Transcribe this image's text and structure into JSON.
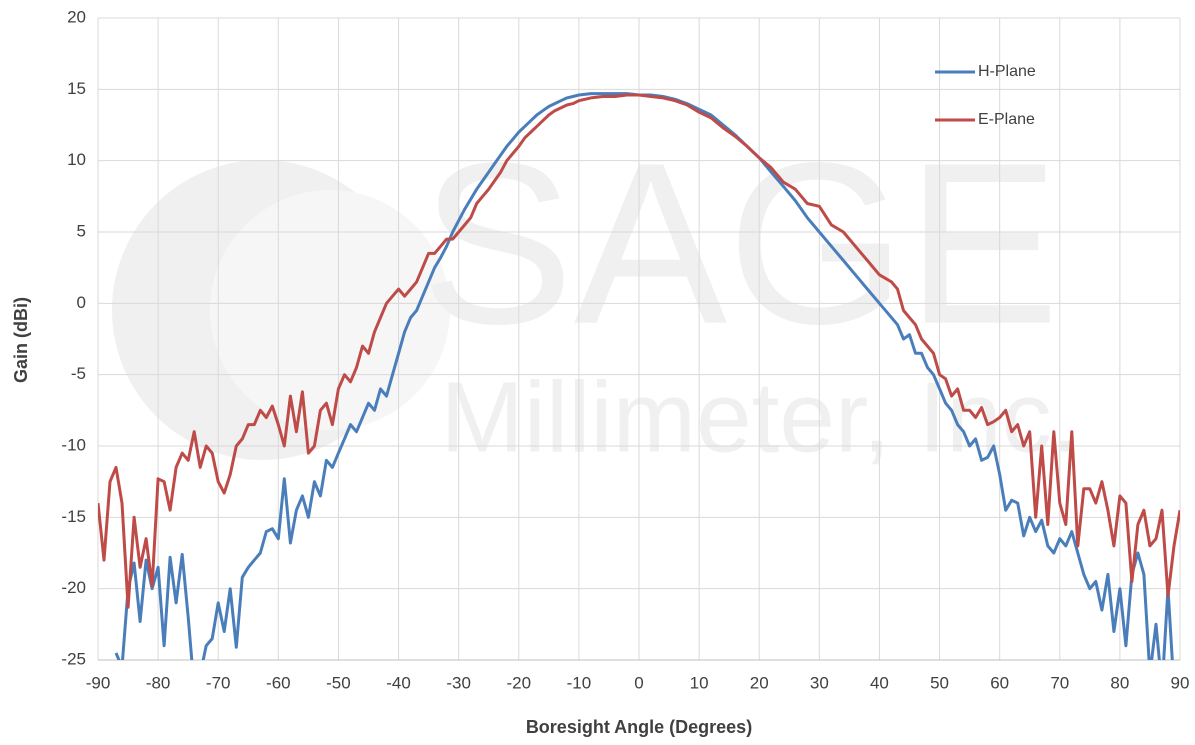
{
  "chart_data": {
    "type": "line",
    "xlabel": "Boresight Angle (Degrees)",
    "ylabel": "Gain (dBi)",
    "watermark": [
      "SAGE",
      "Millimeter, Inc."
    ],
    "xlim": [
      -90,
      90
    ],
    "xticks": [
      -90,
      -80,
      -70,
      -60,
      -50,
      -40,
      -30,
      -20,
      -10,
      0,
      10,
      20,
      30,
      40,
      50,
      60,
      70,
      80,
      90
    ],
    "ylim": [
      -25,
      20
    ],
    "yticks": [
      -25,
      -20,
      -15,
      -10,
      -5,
      0,
      5,
      10,
      15,
      20
    ],
    "grid": true,
    "legend": "upper right",
    "series": [
      {
        "name": "H-Plane",
        "color": "#4a7ebb",
        "x": [
          -87,
          -86,
          -85,
          -84,
          -83,
          -82,
          -81,
          -80,
          -79,
          -78,
          -77,
          -76,
          -75,
          -74,
          -73,
          -72,
          -71,
          -70,
          -69,
          -68,
          -67,
          -66,
          -65,
          -64,
          -63,
          -62,
          -61,
          -60,
          -59,
          -58,
          -57,
          -56,
          -55,
          -54,
          -53,
          -52,
          -51,
          -50,
          -49,
          -48,
          -47,
          -46,
          -45,
          -44,
          -43,
          -42,
          -41,
          -40,
          -39,
          -38,
          -37,
          -36,
          -35,
          -34,
          -33,
          -32,
          -31,
          -30,
          -29,
          -28,
          -27,
          -26,
          -25,
          -24,
          -23,
          -22,
          -21,
          -20,
          -19,
          -18,
          -17,
          -16,
          -15,
          -14,
          -13,
          -12,
          -11,
          -10,
          -8,
          -6,
          -4,
          -2,
          0,
          2,
          4,
          6,
          8,
          10,
          12,
          14,
          16,
          18,
          20,
          22,
          24,
          26,
          28,
          30,
          32,
          34,
          36,
          38,
          40,
          42,
          43,
          44,
          45,
          46,
          47,
          48,
          49,
          50,
          51,
          52,
          53,
          54,
          55,
          56,
          57,
          58,
          59,
          60,
          61,
          62,
          63,
          64,
          65,
          66,
          67,
          68,
          69,
          70,
          71,
          72,
          73,
          74,
          75,
          76,
          77,
          78,
          79,
          80,
          81,
          82,
          83,
          84,
          85,
          86,
          87,
          88,
          89
        ],
        "values": [
          -24.5,
          -25.5,
          -20,
          -18.2,
          -22.3,
          -18,
          -20,
          -18.5,
          -24,
          -17.8,
          -21,
          -17.6,
          -22,
          -27,
          -26,
          -24,
          -23.5,
          -21,
          -23,
          -20,
          -24.1,
          -19.2,
          -18.5,
          -18,
          -17.5,
          -16,
          -15.8,
          -16.5,
          -12.3,
          -16.8,
          -14.5,
          -13.5,
          -15,
          -12.5,
          -13.5,
          -11,
          -11.5,
          -10.5,
          -9.5,
          -8.5,
          -9,
          -8,
          -7,
          -7.5,
          -6,
          -6.5,
          -5,
          -3.5,
          -2,
          -1,
          -0.5,
          0.5,
          1.5,
          2.5,
          3.2,
          4,
          5,
          5.8,
          6.6,
          7.3,
          8,
          8.6,
          9.2,
          9.8,
          10.4,
          11,
          11.5,
          12,
          12.4,
          12.8,
          13.2,
          13.5,
          13.8,
          14,
          14.2,
          14.4,
          14.5,
          14.6,
          14.7,
          14.7,
          14.7,
          14.7,
          14.6,
          14.6,
          14.5,
          14.3,
          14,
          13.6,
          13.2,
          12.5,
          11.8,
          11,
          10.2,
          9.2,
          8.2,
          7.2,
          6,
          5,
          4,
          3,
          2,
          1,
          0,
          -1,
          -1.5,
          -2.5,
          -2.2,
          -3.5,
          -3.5,
          -4.5,
          -5,
          -6,
          -7,
          -7.5,
          -8.5,
          -9,
          -10,
          -9.5,
          -11,
          -10.8,
          -10,
          -12,
          -14.5,
          -13.8,
          -14,
          -16.3,
          -15,
          -16,
          -15.2,
          -17,
          -17.5,
          -16.5,
          -17,
          -16,
          -17.5,
          -19,
          -20,
          -19.5,
          -21.5,
          -19,
          -23,
          -20,
          -24,
          -19,
          -17.5,
          -19,
          -26,
          -22.5,
          -27,
          -20,
          -27
        ]
      },
      {
        "name": "E-Plane",
        "color": "#be4b48",
        "x": [
          -90,
          -89,
          -88,
          -87,
          -86,
          -85,
          -84,
          -83,
          -82,
          -81,
          -80,
          -79,
          -78,
          -77,
          -76,
          -75,
          -74,
          -73,
          -72,
          -71,
          -70,
          -69,
          -68,
          -67,
          -66,
          -65,
          -64,
          -63,
          -62,
          -61,
          -60,
          -59,
          -58,
          -57,
          -56,
          -55,
          -54,
          -53,
          -52,
          -51,
          -50,
          -49,
          -48,
          -47,
          -46,
          -45,
          -44,
          -43,
          -42,
          -41,
          -40,
          -39,
          -38,
          -37,
          -36,
          -35,
          -34,
          -33,
          -32,
          -31,
          -30,
          -29,
          -28,
          -27,
          -26,
          -25,
          -24,
          -23,
          -22,
          -21,
          -20,
          -19,
          -18,
          -17,
          -16,
          -15,
          -14,
          -13,
          -12,
          -11,
          -10,
          -8,
          -6,
          -4,
          -2,
          0,
          2,
          4,
          6,
          8,
          10,
          12,
          14,
          16,
          18,
          20,
          22,
          24,
          26,
          28,
          30,
          32,
          34,
          36,
          38,
          40,
          42,
          43,
          44,
          45,
          46,
          47,
          48,
          49,
          50,
          51,
          52,
          53,
          54,
          55,
          56,
          57,
          58,
          59,
          60,
          61,
          62,
          63,
          64,
          65,
          66,
          67,
          68,
          69,
          70,
          71,
          72,
          73,
          74,
          75,
          76,
          77,
          78,
          79,
          80,
          81,
          82,
          83,
          84,
          85,
          86,
          87,
          88,
          89,
          90
        ],
        "values": [
          -14,
          -18,
          -12.5,
          -11.5,
          -14,
          -21.3,
          -15,
          -18.5,
          -16.5,
          -19.8,
          -12.3,
          -12.5,
          -14.5,
          -11.5,
          -10.5,
          -11,
          -9,
          -11.5,
          -10,
          -10.5,
          -12.5,
          -13.3,
          -12,
          -10,
          -9.5,
          -8.5,
          -8.5,
          -7.5,
          -8,
          -7.2,
          -8.5,
          -10,
          -6.5,
          -9,
          -6.2,
          -10.5,
          -10,
          -7.5,
          -7,
          -8.5,
          -6,
          -5,
          -5.5,
          -4.5,
          -3,
          -3.5,
          -2,
          -1,
          0,
          0.5,
          1,
          0.5,
          1,
          1.5,
          2.5,
          3.5,
          3.5,
          4,
          4.5,
          4.5,
          5,
          5.5,
          6,
          7,
          7.5,
          8,
          8.6,
          9.2,
          10,
          10.5,
          11,
          11.6,
          12,
          12.4,
          12.8,
          13.2,
          13.5,
          13.7,
          13.9,
          14,
          14.2,
          14.4,
          14.5,
          14.5,
          14.6,
          14.6,
          14.5,
          14.4,
          14.2,
          13.9,
          13.4,
          13,
          12.3,
          11.7,
          11,
          10.2,
          9.5,
          8.5,
          8,
          7,
          6.8,
          5.5,
          5,
          4,
          3,
          2,
          1.5,
          1,
          -0.5,
          -1,
          -1.5,
          -2.5,
          -3,
          -3.5,
          -5,
          -5.3,
          -6.5,
          -6,
          -7.5,
          -7.5,
          -8,
          -7.3,
          -8.5,
          -8.3,
          -8,
          -7.5,
          -9,
          -8.5,
          -10,
          -9,
          -15,
          -10,
          -15.5,
          -9,
          -14,
          -15.5,
          -9,
          -17,
          -13,
          -13,
          -14,
          -12.5,
          -14.5,
          -17,
          -13.5,
          -14,
          -19.5,
          -15.5,
          -14.5,
          -17,
          -16.5,
          -14.5,
          -20.5,
          -17,
          -14.5
        ]
      }
    ]
  }
}
